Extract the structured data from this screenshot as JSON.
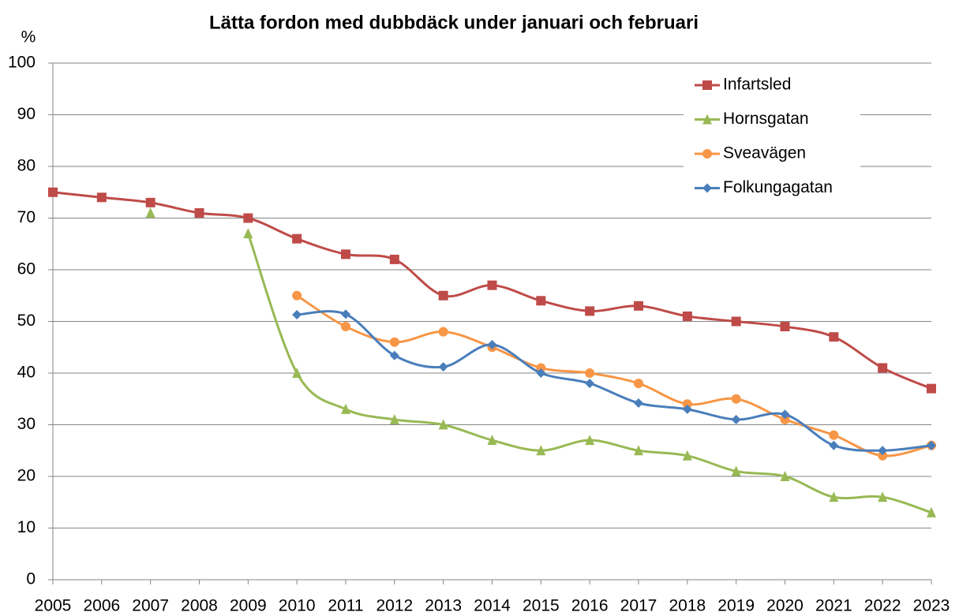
{
  "chart_data": {
    "type": "line",
    "title": "Lätta fordon med dubbdäck under januari och februari",
    "y_label": "%",
    "x": [
      2005,
      2006,
      2007,
      2008,
      2009,
      2010,
      2011,
      2012,
      2013,
      2014,
      2015,
      2016,
      2017,
      2018,
      2019,
      2020,
      2021,
      2022,
      2023
    ],
    "xlim": [
      2005,
      2023
    ],
    "xticks": [
      2005,
      2006,
      2007,
      2008,
      2009,
      2010,
      2011,
      2012,
      2013,
      2014,
      2015,
      2016,
      2017,
      2018,
      2019,
      2020,
      2021,
      2022,
      2023
    ],
    "ylim": [
      0,
      100
    ],
    "yticks": [
      0,
      10,
      20,
      30,
      40,
      50,
      60,
      70,
      80,
      90,
      100
    ],
    "grid": true,
    "smooth": true,
    "legend": "top-right",
    "series": [
      {
        "name": "Infartsled",
        "color": "#be4b48",
        "marker": "square",
        "values": [
          75,
          74,
          73,
          71,
          70,
          66,
          63,
          62,
          55,
          57,
          54,
          52,
          53,
          51,
          50,
          49,
          47,
          41,
          37
        ]
      },
      {
        "name": "Hornsgatan",
        "color": "#98b954",
        "marker": "triangle",
        "values": [
          null,
          null,
          71,
          null,
          67,
          40,
          33,
          31,
          30,
          27,
          25,
          27,
          25,
          24,
          21,
          20,
          16,
          16,
          13
        ]
      },
      {
        "name": "Sveavägen",
        "color": "#f79646",
        "marker": "circle",
        "values": [
          null,
          null,
          null,
          null,
          null,
          55,
          49,
          46,
          48,
          45,
          41,
          40,
          38,
          34,
          35,
          31,
          28,
          24,
          26
        ]
      },
      {
        "name": "Folkungagatan",
        "color": "#4a7ebb",
        "marker": "diamond",
        "values": [
          null,
          null,
          null,
          null,
          null,
          51.3,
          51.4,
          43.4,
          41.2,
          45.5,
          40,
          38,
          34.2,
          33,
          31,
          32,
          26,
          25,
          26
        ]
      }
    ]
  }
}
